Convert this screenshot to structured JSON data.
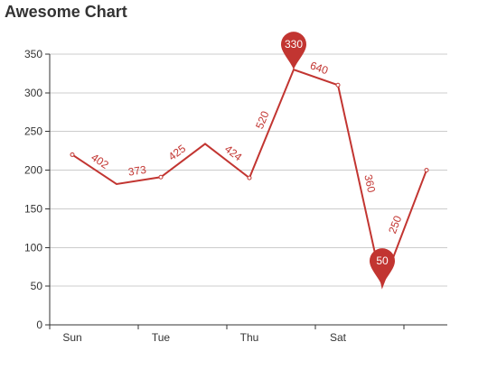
{
  "title": "Awesome Chart",
  "colors": {
    "series": "#c23531",
    "grid": "#cccccc",
    "axis": "#333333",
    "pin_text": "#ffffff"
  },
  "chart_data": {
    "type": "line",
    "title": "Awesome Chart",
    "categories": [
      "Sun",
      "",
      "Tue",
      "",
      "Thu",
      "",
      "Sat",
      "",
      ""
    ],
    "series": [
      {
        "values": [
          220,
          182,
          191,
          234,
          190,
          330,
          310,
          50,
          200
        ]
      }
    ],
    "segment_labels": [
      "402",
      "373",
      "425",
      "424",
      "520",
      "640",
      "360",
      "250"
    ],
    "markers": [
      {
        "label": "330",
        "index": 5,
        "value": 330
      },
      {
        "label": "50",
        "index": 7,
        "value": 50
      }
    ],
    "ylim": [
      0,
      350
    ],
    "yticks": [
      0,
      50,
      100,
      150,
      200,
      250,
      300,
      350
    ],
    "grid": true,
    "legend": "none"
  }
}
